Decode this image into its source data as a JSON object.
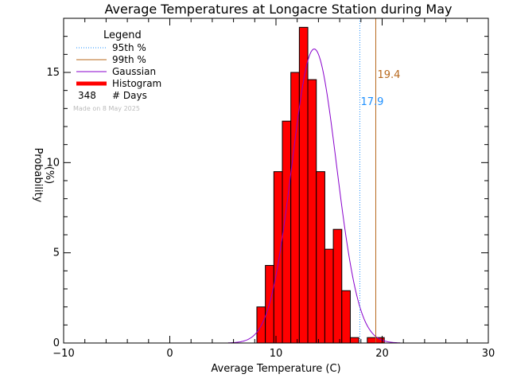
{
  "chart_data": {
    "type": "bar",
    "title": "Average Temperatures at Longacre Station during May",
    "xlabel": "Average Temperature (C)",
    "ylabel_line1": "Probability",
    "ylabel_line2": "(%)",
    "xlim": [
      -10,
      30
    ],
    "ylim": [
      0,
      18
    ],
    "x_ticks": [
      -10,
      0,
      10,
      20,
      30
    ],
    "x_tick_labels": [
      "−10",
      "0",
      "10",
      "20",
      "30"
    ],
    "y_ticks": [
      0,
      5,
      10,
      15
    ],
    "y_tick_labels": [
      "0",
      "5",
      "10",
      "15"
    ],
    "histogram": {
      "bin_width": 0.8,
      "bins": [
        {
          "x0": 8.2,
          "value": 2.0
        },
        {
          "x0": 9.0,
          "value": 4.3
        },
        {
          "x0": 9.8,
          "value": 9.5
        },
        {
          "x0": 10.6,
          "value": 12.3
        },
        {
          "x0": 11.4,
          "value": 15.0
        },
        {
          "x0": 12.2,
          "value": 17.5
        },
        {
          "x0": 13.0,
          "value": 14.6
        },
        {
          "x0": 13.8,
          "value": 9.5
        },
        {
          "x0": 14.6,
          "value": 5.2
        },
        {
          "x0": 15.4,
          "value": 6.3
        },
        {
          "x0": 16.2,
          "value": 2.9
        },
        {
          "x0": 17.0,
          "value": 0.3
        },
        {
          "x0": 18.6,
          "value": 0.3
        },
        {
          "x0": 19.4,
          "value": 0.3
        }
      ]
    },
    "gaussian": {
      "mean": 13.6,
      "sigma": 2.1,
      "peak": 16.3
    },
    "percentile_95": {
      "value": 17.9,
      "label": "17.9"
    },
    "percentile_99": {
      "value": 19.4,
      "label": "19.4"
    },
    "legend": {
      "title": "Legend",
      "items": [
        {
          "label": "95th %",
          "style": "dotted"
        },
        {
          "label": "99th %",
          "style": "solid-brown"
        },
        {
          "label": "Gaussian",
          "style": "solid-purple"
        },
        {
          "label": "Histogram",
          "style": "thick-red"
        }
      ],
      "days_count": "348",
      "days_label": "# Days",
      "placement": "top-left"
    },
    "made_on": "Made on 8 May 2025",
    "colors": {
      "histogram_fill": "#ff0000",
      "histogram_edge": "#000000",
      "gaussian": "#8800cc",
      "p95": "#1e90ff",
      "p99": "#b8691e",
      "axis": "#000000"
    }
  }
}
